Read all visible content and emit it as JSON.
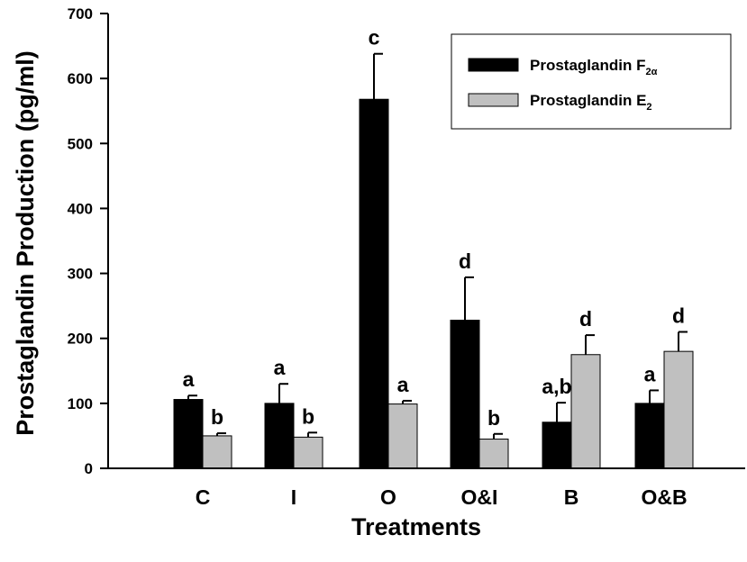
{
  "chart_data": {
    "type": "bar",
    "title": "",
    "xlabel": "Treatments",
    "ylabel": "Prostaglandin Production (pg/ml)",
    "ylim": [
      0,
      700
    ],
    "yticks": [
      0,
      100,
      200,
      300,
      400,
      500,
      600,
      700
    ],
    "grid": false,
    "legend_position": "top-right",
    "categories": [
      "C",
      "I",
      "O",
      "O&I",
      "B",
      "O&B"
    ],
    "series": [
      {
        "name": "Prostaglandin F2α",
        "name_main": "Prostaglandin F",
        "name_sub": "2α",
        "color": "#000000",
        "values": [
          106,
          100,
          568,
          228,
          71,
          100
        ],
        "errors": [
          6,
          30,
          70,
          66,
          30,
          20
        ],
        "labels": [
          "a",
          "a",
          "c",
          "d",
          "a,b",
          "a"
        ]
      },
      {
        "name": "Prostaglandin E2",
        "name_main": "Prostaglandin E",
        "name_sub": "2",
        "color": "#c0c0c0",
        "values": [
          50,
          48,
          99,
          45,
          175,
          180
        ],
        "errors": [
          4,
          7,
          5,
          8,
          30,
          30
        ],
        "labels": [
          "b",
          "b",
          "a",
          "b",
          "d",
          "d"
        ]
      }
    ]
  }
}
